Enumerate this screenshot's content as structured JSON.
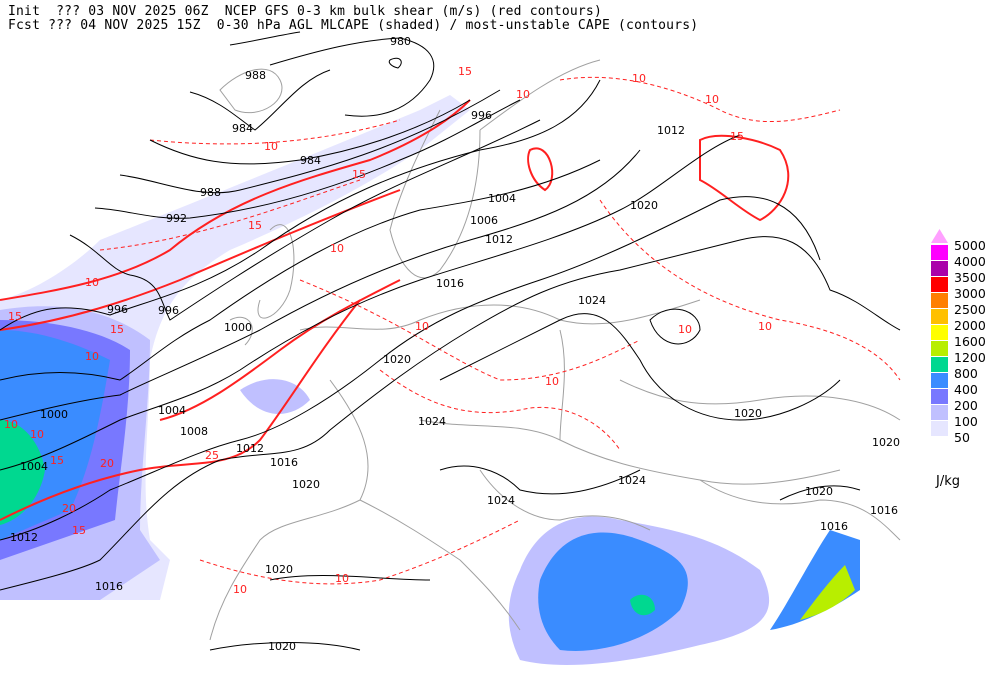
{
  "header": {
    "line1": "Init  ??? 03 NOV 2025 06Z  NCEP GFS 0-3 km bulk shear (m/s) (red contours)",
    "line2": "Fcst ??? 04 NOV 2025 15Z  0-30 hPa AGL MLCAPE (shaded) / most-unstable CAPE (contours)"
  },
  "legend": {
    "unit": "J/kg",
    "levels": [
      "5000",
      "4000",
      "3500",
      "3000",
      "2500",
      "2000",
      "1600",
      "1200",
      "800",
      "400",
      "200",
      "100",
      "50"
    ],
    "colors": [
      "#ff00ff",
      "#aa00aa",
      "#ff0000",
      "#ff7f00",
      "#ffc000",
      "#ffff00",
      "#b8ee00",
      "#00d890",
      "#3a8cff",
      "#7878ff",
      "#c0c0ff",
      "#e6e6ff"
    ],
    "overflow_color": "#ffa0ff"
  },
  "map": {
    "pressure_contour_color": "#000000",
    "shear_contour_color": "#ff2020",
    "border_color": "#a0a0a0",
    "pressure_labels": [
      "980",
      "988",
      "984",
      "984",
      "988",
      "992",
      "996",
      "996",
      "996",
      "1000",
      "1000",
      "1004",
      "1004",
      "1006",
      "1008",
      "1012",
      "1012",
      "1016",
      "1016",
      "1020",
      "1020",
      "1024",
      "1024",
      "1024",
      "1024",
      "1020",
      "1020",
      "1016",
      "1016",
      "1020",
      "1012",
      "1004",
      "1012",
      "1016",
      "1020",
      "1020",
      "1020"
    ],
    "shear_labels": [
      "10",
      "15",
      "15",
      "15",
      "15",
      "10",
      "10",
      "10",
      "10",
      "15",
      "10",
      "15",
      "20",
      "20",
      "15",
      "25",
      "10",
      "10",
      "15",
      "10",
      "10",
      "10",
      "10",
      "10",
      "10",
      "10"
    ]
  }
}
